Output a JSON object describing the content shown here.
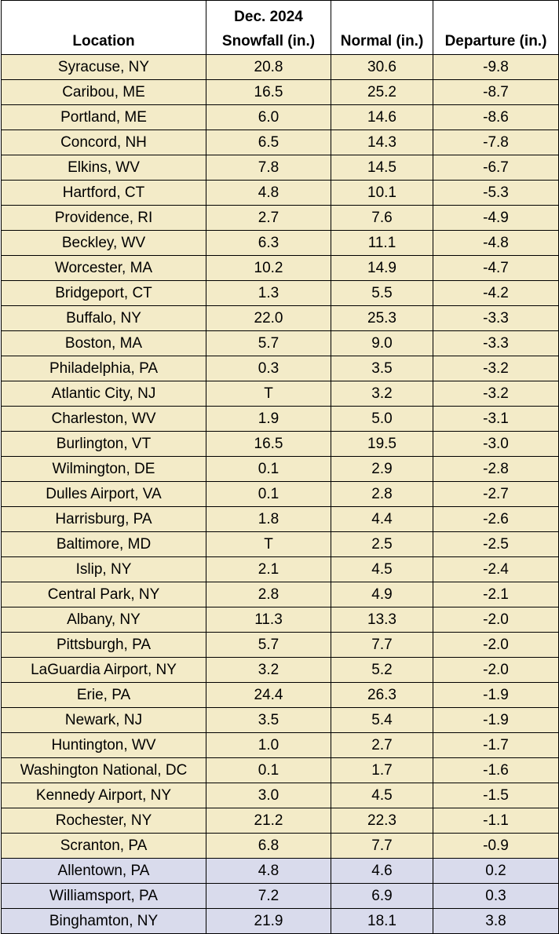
{
  "colors": {
    "negative_row_bg": "#f3ebc8",
    "positive_row_bg": "#d9dbec",
    "header_bg": "#ffffff"
  },
  "header": {
    "location": "Location",
    "snowfall_line1": "Dec. 2024",
    "snowfall_line2": "Snowfall (in.)",
    "normal": "Normal (in.)",
    "departure": "Departure (in.)"
  },
  "rows": [
    {
      "location": "Syracuse, NY",
      "snowfall": "20.8",
      "normal": "30.6",
      "departure": "-9.8"
    },
    {
      "location": "Caribou, ME",
      "snowfall": "16.5",
      "normal": "25.2",
      "departure": "-8.7"
    },
    {
      "location": "Portland, ME",
      "snowfall": "6.0",
      "normal": "14.6",
      "departure": "-8.6"
    },
    {
      "location": "Concord, NH",
      "snowfall": "6.5",
      "normal": "14.3",
      "departure": "-7.8"
    },
    {
      "location": "Elkins, WV",
      "snowfall": "7.8",
      "normal": "14.5",
      "departure": "-6.7"
    },
    {
      "location": "Hartford, CT",
      "snowfall": "4.8",
      "normal": "10.1",
      "departure": "-5.3"
    },
    {
      "location": "Providence, RI",
      "snowfall": "2.7",
      "normal": "7.6",
      "departure": "-4.9"
    },
    {
      "location": "Beckley, WV",
      "snowfall": "6.3",
      "normal": "11.1",
      "departure": "-4.8"
    },
    {
      "location": "Worcester, MA",
      "snowfall": "10.2",
      "normal": "14.9",
      "departure": "-4.7"
    },
    {
      "location": "Bridgeport, CT",
      "snowfall": "1.3",
      "normal": "5.5",
      "departure": "-4.2"
    },
    {
      "location": "Buffalo, NY",
      "snowfall": "22.0",
      "normal": "25.3",
      "departure": "-3.3"
    },
    {
      "location": "Boston, MA",
      "snowfall": "5.7",
      "normal": "9.0",
      "departure": "-3.3"
    },
    {
      "location": "Philadelphia, PA",
      "snowfall": "0.3",
      "normal": "3.5",
      "departure": "-3.2"
    },
    {
      "location": "Atlantic City, NJ",
      "snowfall": "T",
      "normal": "3.2",
      "departure": "-3.2"
    },
    {
      "location": "Charleston, WV",
      "snowfall": "1.9",
      "normal": "5.0",
      "departure": "-3.1"
    },
    {
      "location": "Burlington, VT",
      "snowfall": "16.5",
      "normal": "19.5",
      "departure": "-3.0"
    },
    {
      "location": "Wilmington, DE",
      "snowfall": "0.1",
      "normal": "2.9",
      "departure": "-2.8"
    },
    {
      "location": "Dulles Airport, VA",
      "snowfall": "0.1",
      "normal": "2.8",
      "departure": "-2.7"
    },
    {
      "location": "Harrisburg, PA",
      "snowfall": "1.8",
      "normal": "4.4",
      "departure": "-2.6"
    },
    {
      "location": "Baltimore, MD",
      "snowfall": "T",
      "normal": "2.5",
      "departure": "-2.5"
    },
    {
      "location": "Islip, NY",
      "snowfall": "2.1",
      "normal": "4.5",
      "departure": "-2.4"
    },
    {
      "location": "Central Park, NY",
      "snowfall": "2.8",
      "normal": "4.9",
      "departure": "-2.1"
    },
    {
      "location": "Albany, NY",
      "snowfall": "11.3",
      "normal": "13.3",
      "departure": "-2.0"
    },
    {
      "location": "Pittsburgh, PA",
      "snowfall": "5.7",
      "normal": "7.7",
      "departure": "-2.0"
    },
    {
      "location": "LaGuardia Airport, NY",
      "snowfall": "3.2",
      "normal": "5.2",
      "departure": "-2.0"
    },
    {
      "location": "Erie, PA",
      "snowfall": "24.4",
      "normal": "26.3",
      "departure": "-1.9"
    },
    {
      "location": "Newark, NJ",
      "snowfall": "3.5",
      "normal": "5.4",
      "departure": "-1.9"
    },
    {
      "location": "Huntington, WV",
      "snowfall": "1.0",
      "normal": "2.7",
      "departure": "-1.7"
    },
    {
      "location": "Washington National, DC",
      "snowfall": "0.1",
      "normal": "1.7",
      "departure": "-1.6"
    },
    {
      "location": "Kennedy Airport, NY",
      "snowfall": "3.0",
      "normal": "4.5",
      "departure": "-1.5"
    },
    {
      "location": "Rochester, NY",
      "snowfall": "21.2",
      "normal": "22.3",
      "departure": "-1.1"
    },
    {
      "location": "Scranton, PA",
      "snowfall": "6.8",
      "normal": "7.7",
      "departure": "-0.9"
    },
    {
      "location": "Allentown, PA",
      "snowfall": "4.8",
      "normal": "4.6",
      "departure": "0.2"
    },
    {
      "location": "Williamsport, PA",
      "snowfall": "7.2",
      "normal": "6.9",
      "departure": "0.3"
    },
    {
      "location": "Binghamton, NY",
      "snowfall": "21.9",
      "normal": "18.1",
      "departure": "3.8"
    }
  ]
}
